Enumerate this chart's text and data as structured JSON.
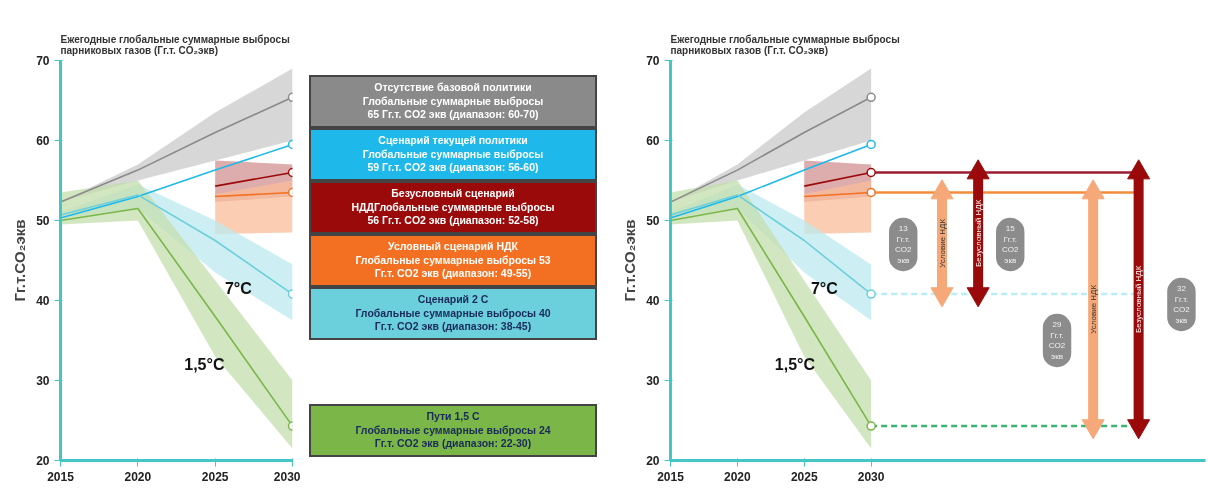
{
  "chart_data": [
    {
      "type": "line",
      "title": "Ежегодные глобальные суммарные выбросы\nпарниковых газов (Гг.т. CO₂экв)",
      "ylabel": "Гг.т.CO₂экв",
      "x": [
        2015,
        2020,
        2025,
        2030
      ],
      "xlim": [
        2015,
        2030
      ],
      "ylim": [
        20,
        70
      ],
      "xticks": [
        2015,
        2020,
        2025,
        2030
      ],
      "yticks": [
        20,
        30,
        40,
        50,
        60,
        70
      ],
      "grid": false,
      "legend": "right",
      "series": [
        {
          "name": "Отсутствие базовой политики\nГлобальные суммарные выбросы\n65 Гг.т. CO2 экв (диапазон: 60-70)",
          "color": "#8a8a8a",
          "values": [
            52.3,
            56.3,
            61,
            65.4
          ],
          "lower": [
            52.3,
            55,
            57.5,
            60
          ],
          "upper": [
            52.3,
            57,
            63.5,
            69
          ]
        },
        {
          "name": "Сценарий текущей политики\nГлобальные суммарные выбросы\n59 Гг.т. CO2 экв (диапазон: 56-60)",
          "color": "#1fb8ea",
          "values": [
            50.3,
            53,
            56.3,
            59.5
          ]
        },
        {
          "name": "Безусловный сценарий\nНДДГлобальные суммарные выбросы\n56 Гг.т. CO2 экв (диапазон: 52-58)",
          "color": "#9b0a0a",
          "x": [
            2025,
            2030
          ],
          "values": [
            54.3,
            56
          ],
          "lower": [
            52.3,
            53
          ],
          "upper": [
            57.5,
            57
          ]
        },
        {
          "name": "Условный сценарий НДК\nГлобальные суммарные выбросы 53\nГг.т. CO2 экв (диапазон: 49-55)",
          "color": "#f36f21",
          "x": [
            2025,
            2030
          ],
          "values": [
            53,
            53.5
          ],
          "lower": [
            48.3,
            48.5
          ],
          "upper": [
            53.3,
            55
          ]
        },
        {
          "name": "Сценарий 2 С\nГлобальные суммарные выбросы 40\nГг.т. CO2 экв (диапазон: 38-45)",
          "color": "#6ccfdc",
          "values": [
            50.7,
            53.2,
            47.5,
            40.8
          ],
          "lower": [
            50.3,
            51.5,
            43.5,
            37.5
          ],
          "upper": [
            51,
            54.5,
            50,
            44.5
          ]
        },
        {
          "name": "Пути 1,5 С\nГлобальные суммарные выбросы 24\nГг.т. CO2 экв (диапазон: 22-30)",
          "color": "#7ab648",
          "values": [
            50,
            51.5,
            38,
            24.3
          ],
          "lower": [
            49.5,
            50,
            33,
            21.5
          ],
          "upper": [
            53.5,
            55,
            42.5,
            30
          ]
        },
        {
          "type": "scatter",
          "marker": "circle",
          "color": "#8a8a8a",
          "x": [
            2030
          ],
          "values": [
            65.4
          ]
        },
        {
          "type": "scatter",
          "marker": "circle",
          "color": "#1fb8ea",
          "x": [
            2030
          ],
          "values": [
            59.5
          ]
        },
        {
          "type": "scatter",
          "marker": "circle",
          "color": "#9b0a0a",
          "x": [
            2030
          ],
          "values": [
            56
          ]
        },
        {
          "type": "scatter",
          "marker": "circle",
          "color": "#f36f21",
          "x": [
            2030
          ],
          "values": [
            53.5
          ]
        },
        {
          "type": "scatter",
          "marker": "circle",
          "color": "#6ccfdc",
          "x": [
            2030
          ],
          "values": [
            40.8
          ]
        },
        {
          "type": "scatter",
          "marker": "circle",
          "color": "#7ab648",
          "x": [
            2030
          ],
          "values": [
            24.3
          ]
        }
      ],
      "annotations": [
        "7°C",
        "1,5°C"
      ]
    },
    {
      "type": "line",
      "title": "Ежегодные глобальные суммарные выбросы\nпарниковых газов (Гг.т. CO₂экв)",
      "ylabel": "Гг.т.CO₂экв",
      "x": [
        2015,
        2020,
        2025,
        2030
      ],
      "xlim": [
        2015,
        2055
      ],
      "ylim": [
        20,
        70
      ],
      "xticks": [
        2015,
        2020,
        2025,
        2030
      ],
      "yticks": [
        20,
        30,
        40,
        50,
        60,
        70
      ],
      "grid": false,
      "series": [
        {
          "color": "#8a8a8a",
          "values": [
            52.3,
            56.3,
            61,
            65.4
          ],
          "lower": [
            52.3,
            55,
            57.5,
            60
          ],
          "upper": [
            52.3,
            57,
            63.5,
            69
          ]
        },
        {
          "color": "#1fb8ea",
          "values": [
            50.3,
            53,
            56.3,
            59.5
          ]
        },
        {
          "color": "#9b0a0a",
          "x": [
            2025,
            2030
          ],
          "values": [
            54.3,
            56
          ],
          "lower": [
            52.3,
            53
          ],
          "upper": [
            57.5,
            57
          ]
        },
        {
          "color": "#f36f21",
          "x": [
            2025,
            2030
          ],
          "values": [
            53,
            53.5
          ],
          "lower": [
            48.3,
            48.5
          ],
          "upper": [
            53.3,
            55
          ]
        },
        {
          "color": "#6ccfdc",
          "values": [
            50.7,
            53.2,
            47.5,
            40.8
          ],
          "lower": [
            50.3,
            51.5,
            43.5,
            37.5
          ],
          "upper": [
            51,
            54.5,
            50,
            44.5
          ]
        },
        {
          "color": "#7ab648",
          "values": [
            50,
            51.5,
            38,
            24.3
          ],
          "lower": [
            49.5,
            50,
            33,
            21.5
          ],
          "upper": [
            53.5,
            55,
            42.5,
            30
          ]
        },
        {
          "type": "scatter",
          "marker": "circle",
          "color": "#8a8a8a",
          "x": [
            2030
          ],
          "values": [
            65.4
          ]
        },
        {
          "type": "scatter",
          "marker": "circle",
          "color": "#1fb8ea",
          "x": [
            2030
          ],
          "values": [
            59.5
          ]
        },
        {
          "type": "scatter",
          "marker": "circle",
          "color": "#9b0a0a",
          "x": [
            2030
          ],
          "values": [
            56
          ]
        },
        {
          "type": "scatter",
          "marker": "circle",
          "color": "#f36f21",
          "x": [
            2030
          ],
          "values": [
            53.5
          ]
        },
        {
          "type": "scatter",
          "marker": "circle",
          "color": "#6ccfdc",
          "x": [
            2030
          ],
          "values": [
            40.8
          ]
        },
        {
          "type": "scatter",
          "marker": "circle",
          "color": "#7ab648",
          "x": [
            2030
          ],
          "values": [
            24.3
          ]
        },
        {
          "name": "Условие НДК",
          "color": "#f7a878",
          "marker": "triangle",
          "x": [
            2035.3,
            2035.3
          ],
          "values": [
            40.8,
            53.5
          ]
        },
        {
          "name": "Безусловный НДК",
          "color": "#9b0a0a",
          "marker": "triangle",
          "x": [
            2038,
            2038
          ],
          "values": [
            40.8,
            56
          ]
        },
        {
          "name": "Условие НДК",
          "color": "#f7a878",
          "marker": "triangle",
          "x": [
            2046.6,
            2046.6
          ],
          "values": [
            24.3,
            53.5
          ]
        },
        {
          "name": "Безусловный НДК",
          "color": "#9b0a0a",
          "marker": "triangle",
          "x": [
            2050,
            2050
          ],
          "values": [
            24.3,
            56
          ]
        }
      ],
      "ref_lines": [
        {
          "axis": "y",
          "value": 56,
          "color": "#9b1b30",
          "line_style": "solid"
        },
        {
          "axis": "y",
          "value": 53.5,
          "color": "#f28c3c",
          "line_style": "solid"
        },
        {
          "axis": "y",
          "value": 40.8,
          "color": "#b8eef5",
          "line_style": "dashed"
        },
        {
          "axis": "y",
          "value": 24.3,
          "color": "#3cb371",
          "line_style": "dashed"
        }
      ],
      "annotations": [
        "7°C",
        "1,5°C",
        "13\nГг.т.\nCO2\nэкв",
        "15\nГг.т.\nCO2\nэкв",
        "29\nГг.т.\nCO2\nэкв",
        "32\nГг.т.\nCO2\nэкв"
      ]
    }
  ]
}
